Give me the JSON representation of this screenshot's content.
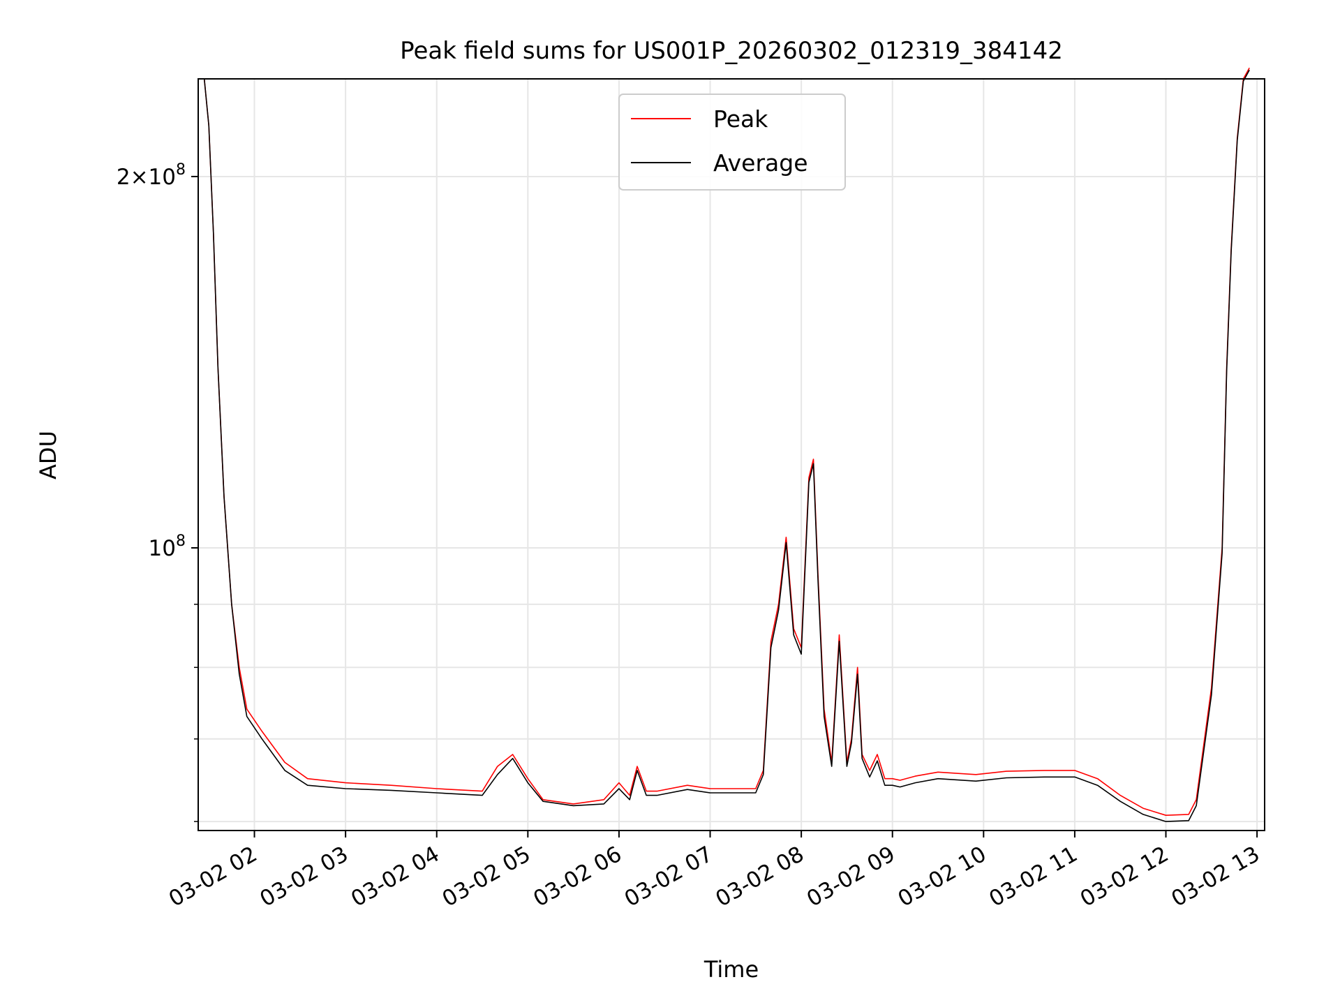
{
  "chart_data": {
    "type": "line",
    "title": "Peak field sums for US001P_20260302_012319_384142",
    "xlabel": "Time",
    "ylabel": "ADU",
    "x_unit": "time (2026-03-02)",
    "y_scale": "log",
    "grid": true,
    "legend_position": "top-center",
    "xlim": [
      "2026-03-02 01:23",
      "2026-03-02 13:05"
    ],
    "ylim": [
      59000000,
      240000000
    ],
    "x_ticks": [
      {
        "value": "2026-03-02 02:00",
        "label": "03-02 02"
      },
      {
        "value": "2026-03-02 03:00",
        "label": "03-02 03"
      },
      {
        "value": "2026-03-02 04:00",
        "label": "03-02 04"
      },
      {
        "value": "2026-03-02 05:00",
        "label": "03-02 05"
      },
      {
        "value": "2026-03-02 06:00",
        "label": "03-02 06"
      },
      {
        "value": "2026-03-02 07:00",
        "label": "03-02 07"
      },
      {
        "value": "2026-03-02 08:00",
        "label": "03-02 08"
      },
      {
        "value": "2026-03-02 09:00",
        "label": "03-02 09"
      },
      {
        "value": "2026-03-02 10:00",
        "label": "03-02 10"
      },
      {
        "value": "2026-03-02 11:00",
        "label": "03-02 11"
      },
      {
        "value": "2026-03-02 12:00",
        "label": "03-02 12"
      },
      {
        "value": "2026-03-02 13:00",
        "label": "03-02 13"
      }
    ],
    "y_ticks_major": [
      {
        "value": 100000000,
        "base": "10",
        "exp": "8",
        "mantissa": ""
      },
      {
        "value": 200000000,
        "base": "10",
        "exp": "8",
        "mantissa": "2"
      }
    ],
    "y_ticks_minor": [
      60000000,
      70000000,
      80000000,
      90000000
    ],
    "series": [
      {
        "name": "Peak",
        "color": "#ff0000",
        "x": [
          "2026-03-02 01:27",
          "2026-03-02 01:30",
          "2026-03-02 01:33",
          "2026-03-02 01:36",
          "2026-03-02 01:40",
          "2026-03-02 01:45",
          "2026-03-02 01:50",
          "2026-03-02 01:55",
          "2026-03-02 02:05",
          "2026-03-02 02:20",
          "2026-03-02 02:35",
          "2026-03-02 03:00",
          "2026-03-02 03:30",
          "2026-03-02 04:00",
          "2026-03-02 04:30",
          "2026-03-02 04:40",
          "2026-03-02 04:50",
          "2026-03-02 05:00",
          "2026-03-02 05:10",
          "2026-03-02 05:30",
          "2026-03-02 05:50",
          "2026-03-02 06:00",
          "2026-03-02 06:07",
          "2026-03-02 06:12",
          "2026-03-02 06:18",
          "2026-03-02 06:25",
          "2026-03-02 06:45",
          "2026-03-02 07:00",
          "2026-03-02 07:30",
          "2026-03-02 07:35",
          "2026-03-02 07:40",
          "2026-03-02 07:45",
          "2026-03-02 07:50",
          "2026-03-02 07:55",
          "2026-03-02 08:00",
          "2026-03-02 08:05",
          "2026-03-02 08:08",
          "2026-03-02 08:11",
          "2026-03-02 08:15",
          "2026-03-02 08:20",
          "2026-03-02 08:25",
          "2026-03-02 08:30",
          "2026-03-02 08:33",
          "2026-03-02 08:37",
          "2026-03-02 08:40",
          "2026-03-02 08:45",
          "2026-03-02 08:50",
          "2026-03-02 08:55",
          "2026-03-02 09:00",
          "2026-03-02 09:05",
          "2026-03-02 09:15",
          "2026-03-02 09:30",
          "2026-03-02 09:55",
          "2026-03-02 10:15",
          "2026-03-02 10:40",
          "2026-03-02 11:00",
          "2026-03-02 11:15",
          "2026-03-02 11:30",
          "2026-03-02 11:45",
          "2026-03-02 12:00",
          "2026-03-02 12:15",
          "2026-03-02 12:20",
          "2026-03-02 12:30",
          "2026-03-02 12:37",
          "2026-03-02 12:40",
          "2026-03-02 12:43",
          "2026-03-02 12:47",
          "2026-03-02 12:51",
          "2026-03-02 12:55"
        ],
        "y": [
          240000000,
          220000000,
          180000000,
          140000000,
          110000000,
          90000000,
          80000000,
          74000000,
          71000000,
          67000000,
          65000000,
          64500000,
          64200000,
          63800000,
          63500000,
          66500000,
          68000000,
          65000000,
          62500000,
          62000000,
          62500000,
          64500000,
          63000000,
          66500000,
          63500000,
          63500000,
          64200000,
          63800000,
          63800000,
          66000000,
          84000000,
          90000000,
          102000000,
          86000000,
          83000000,
          114000000,
          118000000,
          95000000,
          74000000,
          67000000,
          85000000,
          67000000,
          70000000,
          80000000,
          68000000,
          66000000,
          68000000,
          65000000,
          65000000,
          64800000,
          65300000,
          65800000,
          65500000,
          65900000,
          66000000,
          66000000,
          65000000,
          63000000,
          61500000,
          60700000,
          60800000,
          62500000,
          77000000,
          100000000,
          140000000,
          175000000,
          215000000,
          240000000,
          245000000
        ]
      },
      {
        "name": "Average",
        "color": "#000000",
        "x": [
          "2026-03-02 01:27",
          "2026-03-02 01:30",
          "2026-03-02 01:33",
          "2026-03-02 01:36",
          "2026-03-02 01:40",
          "2026-03-02 01:45",
          "2026-03-02 01:50",
          "2026-03-02 01:55",
          "2026-03-02 02:05",
          "2026-03-02 02:20",
          "2026-03-02 02:35",
          "2026-03-02 03:00",
          "2026-03-02 03:30",
          "2026-03-02 04:00",
          "2026-03-02 04:30",
          "2026-03-02 04:40",
          "2026-03-02 04:50",
          "2026-03-02 05:00",
          "2026-03-02 05:10",
          "2026-03-02 05:30",
          "2026-03-02 05:50",
          "2026-03-02 06:00",
          "2026-03-02 06:07",
          "2026-03-02 06:12",
          "2026-03-02 06:18",
          "2026-03-02 06:25",
          "2026-03-02 06:45",
          "2026-03-02 07:00",
          "2026-03-02 07:30",
          "2026-03-02 07:35",
          "2026-03-02 07:40",
          "2026-03-02 07:45",
          "2026-03-02 07:50",
          "2026-03-02 07:55",
          "2026-03-02 08:00",
          "2026-03-02 08:05",
          "2026-03-02 08:08",
          "2026-03-02 08:11",
          "2026-03-02 08:15",
          "2026-03-02 08:20",
          "2026-03-02 08:25",
          "2026-03-02 08:30",
          "2026-03-02 08:33",
          "2026-03-02 08:37",
          "2026-03-02 08:40",
          "2026-03-02 08:45",
          "2026-03-02 08:50",
          "2026-03-02 08:55",
          "2026-03-02 09:00",
          "2026-03-02 09:05",
          "2026-03-02 09:15",
          "2026-03-02 09:30",
          "2026-03-02 09:55",
          "2026-03-02 10:15",
          "2026-03-02 10:40",
          "2026-03-02 11:00",
          "2026-03-02 11:15",
          "2026-03-02 11:30",
          "2026-03-02 11:45",
          "2026-03-02 12:00",
          "2026-03-02 12:15",
          "2026-03-02 12:20",
          "2026-03-02 12:30",
          "2026-03-02 12:37",
          "2026-03-02 12:40",
          "2026-03-02 12:43",
          "2026-03-02 12:47",
          "2026-03-02 12:51",
          "2026-03-02 12:55"
        ],
        "y": [
          240000000,
          220000000,
          180000000,
          140000000,
          110000000,
          90000000,
          79000000,
          73000000,
          70000000,
          66000000,
          64200000,
          63800000,
          63600000,
          63300000,
          63000000,
          65500000,
          67500000,
          64500000,
          62300000,
          61800000,
          62000000,
          63800000,
          62500000,
          66000000,
          63000000,
          63000000,
          63700000,
          63300000,
          63300000,
          65500000,
          83000000,
          89000000,
          101000000,
          85000000,
          82000000,
          113000000,
          117000000,
          94000000,
          73000000,
          66500000,
          84000000,
          66500000,
          69500000,
          79000000,
          67500000,
          65200000,
          67200000,
          64200000,
          64200000,
          64000000,
          64500000,
          65000000,
          64700000,
          65100000,
          65200000,
          65200000,
          64200000,
          62300000,
          60800000,
          60000000,
          60100000,
          61800000,
          76000000,
          99000000,
          139000000,
          174000000,
          214000000,
          239000000,
          244000000
        ]
      }
    ]
  }
}
